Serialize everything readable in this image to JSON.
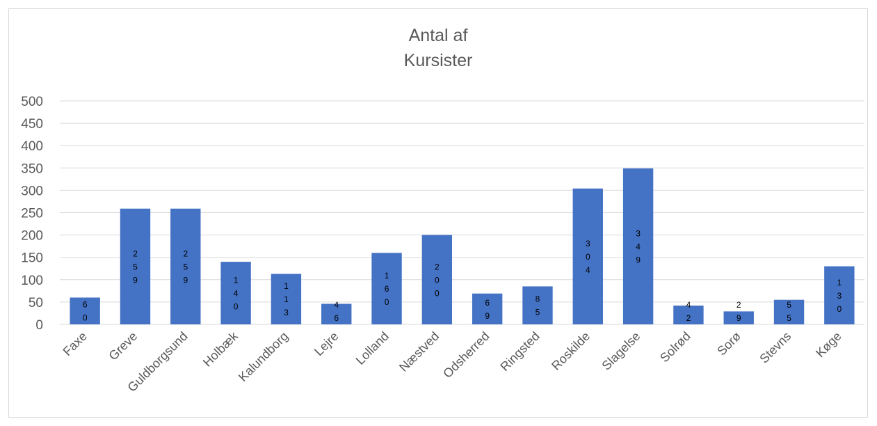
{
  "chart_data": {
    "type": "bar",
    "title_lines": [
      "Antal af",
      "Kursister"
    ],
    "categories": [
      "Faxe",
      "Greve",
      "Guldborgsund",
      "Holbæk",
      "Kalundborg",
      "Lejre",
      "Lolland",
      "Næstved",
      "Odsherred",
      "Ringsted",
      "Roskilde",
      "Slagelse",
      "Solrød",
      "Sorø",
      "Stevns",
      "Køge"
    ],
    "values": [
      60,
      259,
      259,
      140,
      113,
      46,
      160,
      200,
      69,
      85,
      304,
      349,
      42,
      29,
      55,
      130
    ],
    "ylim": [
      0,
      500
    ],
    "yticks": [
      "0",
      "50",
      "100",
      "150",
      "200",
      "250",
      "300",
      "350",
      "400",
      "450",
      "500"
    ],
    "grid": true,
    "legend": "none",
    "bar_color": "#4472c4"
  }
}
